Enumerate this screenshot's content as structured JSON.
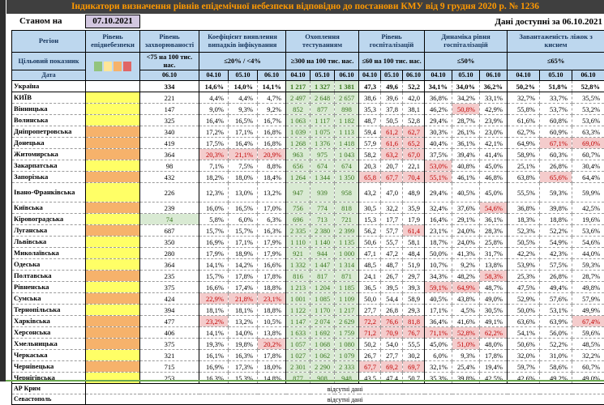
{
  "title": "Індикатори визначення рівнів епідемічної небезпеки відповідно до постанови КМУ від 9 грудня 2020 р. № 1236",
  "as_of": {
    "label": "Станом на",
    "date": "07.10.2021"
  },
  "data_available": "Дані доступні за 06.10.2021",
  "colors": {
    "title_text": "#FF9900",
    "title_bar_bg": "#3F3F3F",
    "header_bg": "#BDD7EE",
    "header_text": "#17365D",
    "as_of_bg": "#D2C7E0",
    "risk_yellow": "#FFFF66",
    "risk_orange": "#F6B26B",
    "cell_red_bg": "#F4CCCC",
    "cell_red_text": "#C00000",
    "cell_green_bg": "#D9EAD3",
    "cell_green_text": "#38761D",
    "legend": [
      "#93C47D",
      "#FFE599",
      "#F6B26B",
      "#E06666"
    ]
  },
  "header": {
    "region": "Регіон",
    "risk_level": "Рівень епіднебезпеки",
    "target_label": "Цільовий показник",
    "date_label": "Дата",
    "groups": [
      {
        "label": "Рівень захворюваності",
        "target": "<75 на 100 тис. нас.",
        "dates": [
          "06.10"
        ]
      },
      {
        "label": "Коефіцієнт виявлення випадків інфікування",
        "target": "≤20% / <4%",
        "dates": [
          "04.10",
          "05.10",
          "06.10"
        ]
      },
      {
        "label": "Охоплення тестуванням",
        "target": "≥300 на 100 тис. нас.",
        "dates": [
          "04.10",
          "05.10",
          "06.10"
        ]
      },
      {
        "label": "Рівень госпіталізацій",
        "target": "≤60 на 100 тис. нас.",
        "dates": [
          "04.10",
          "05.10",
          "06.10"
        ]
      },
      {
        "label": "Динаміка рівня госпіталізацій",
        "target": "≤50%",
        "dates": [
          "04.10",
          "05.10",
          "06.10"
        ]
      },
      {
        "label": "Завантаженість ліжок з киснем",
        "target": "≤65%",
        "dates": [
          "04.10",
          "05.10",
          "06.10"
        ]
      }
    ]
  },
  "cell_marker_legend": "cell values may be prefixed r: (red highlight) or g: (green highlight)",
  "rows": [
    {
      "region": "Україна",
      "risk": "none",
      "bold": true,
      "cells": [
        "334",
        "14,6%",
        "14,0%",
        "14,1%",
        "g:1 217",
        "g:1 327",
        "g:1 381",
        "47,3",
        "49,6",
        "52,2",
        "34,1%",
        "34,0%",
        "36,2%",
        "50,2%",
        "51,8%",
        "52,8%"
      ]
    },
    {
      "region": "КИЇВ",
      "risk": "yellow",
      "cells": [
        "221",
        "4,4%",
        "4,4%",
        "4,7%",
        "g:2 497",
        "g:2 648",
        "g:2 657",
        "38,6",
        "39,6",
        "42,0",
        "36,8%",
        "34,2%",
        "33,1%",
        "32,7%",
        "33,7%",
        "35,5%"
      ]
    },
    {
      "region": "Вінницька",
      "risk": "yellow",
      "cells": [
        "147",
        "9,0%",
        "9,3%",
        "9,2%",
        "g:852",
        "g:877",
        "g:898",
        "35,3",
        "37,8",
        "38,1",
        "46,2%",
        "r:50,8%",
        "42,9%",
        "55,8%",
        "53,7%",
        "53,2%"
      ]
    },
    {
      "region": "Волинська",
      "risk": "yellow",
      "cells": [
        "325",
        "16,4%",
        "16,5%",
        "16,7%",
        "g:1 063",
        "g:1 117",
        "g:1 182",
        "48,7",
        "50,5",
        "52,8",
        "29,4%",
        "28,7%",
        "23,9%",
        "61,6%",
        "60,8%",
        "53,6%"
      ]
    },
    {
      "region": "Дніпропетровська",
      "risk": "orange",
      "cells": [
        "340",
        "17,2%",
        "17,1%",
        "16,8%",
        "g:1 039",
        "g:1 075",
        "g:1 113",
        "59,4",
        "r:61,2",
        "r:62,7",
        "30,3%",
        "26,1%",
        "23,0%",
        "62,7%",
        "60,9%",
        "63,3%"
      ]
    },
    {
      "region": "Донецька",
      "risk": "orange",
      "cells": [
        "419",
        "17,5%",
        "16,4%",
        "16,8%",
        "g:1 268",
        "g:1 376",
        "g:1 418",
        "57,9",
        "r:61,6",
        "r:65,2",
        "40,4%",
        "36,1%",
        "42,1%",
        "64,9%",
        "r:67,1%",
        "r:69,0%"
      ]
    },
    {
      "region": "Житомирська",
      "risk": "orange",
      "cells": [
        "364",
        "r:20,3%",
        "r:21,1%",
        "r:20,9%",
        "g:963",
        "g:975",
        "g:1 043",
        "58,2",
        "r:63,2",
        "r:67,0",
        "37,5%",
        "39,4%",
        "41,4%",
        "58,9%",
        "60,3%",
        "60,7%"
      ]
    },
    {
      "region": "Закарпатська",
      "risk": "yellow",
      "cells": [
        "98",
        "7,1%",
        "7,5%",
        "8,8%",
        "g:656",
        "g:674",
        "g:674",
        "20,3",
        "20,7",
        "22,1",
        "r:53,0%",
        "40,8%",
        "45,0%",
        "25,1%",
        "26,8%",
        "30,4%"
      ]
    },
    {
      "region": "Запорізька",
      "risk": "orange",
      "cells": [
        "432",
        "18,2%",
        "18,0%",
        "18,4%",
        "g:1 264",
        "g:1 344",
        "g:1 350",
        "r:65,8",
        "r:67,7",
        "r:70,4",
        "r:55,1%",
        "46,1%",
        "46,8%",
        "63,8%",
        "r:65,6%",
        "64,4%"
      ]
    },
    {
      "region": "Івано-Франківська",
      "risk": "yellow",
      "tall": true,
      "cells": [
        "226",
        "12,3%",
        "13,0%",
        "13,2%",
        "g:947",
        "g:939",
        "g:958",
        "43,2",
        "47,0",
        "48,9",
        "29,4%",
        "40,5%",
        "45,0%",
        "55,5%",
        "59,3%",
        "59,9%"
      ]
    },
    {
      "region": "Київська",
      "risk": "orange",
      "cells": [
        "239",
        "16,0%",
        "16,5%",
        "17,0%",
        "g:756",
        "g:774",
        "g:818",
        "30,5",
        "32,2",
        "35,9",
        "32,4%",
        "37,6%",
        "r:54,6%",
        "36,8%",
        "39,8%",
        "42,5%"
      ]
    },
    {
      "region": "Кіровоградська",
      "risk": "yellow",
      "cells": [
        "g:74",
        "5,8%",
        "6,0%",
        "6,3%",
        "g:696",
        "g:713",
        "g:721",
        "15,3",
        "17,7",
        "17,9",
        "16,4%",
        "29,1%",
        "36,1%",
        "18,3%",
        "18,8%",
        "19,6%"
      ]
    },
    {
      "region": "Луганська",
      "risk": "orange",
      "cells": [
        "687",
        "15,7%",
        "15,7%",
        "16,3%",
        "g:2 335",
        "g:2 380",
        "g:2 399",
        "56,2",
        "57,7",
        "r:61,4",
        "23,1%",
        "24,0%",
        "28,3%",
        "52,3%",
        "52,2%",
        "53,6%"
      ]
    },
    {
      "region": "Львівська",
      "risk": "yellow",
      "cells": [
        "350",
        "16,9%",
        "17,1%",
        "17,9%",
        "g:1 110",
        "g:1 140",
        "g:1 135",
        "50,6",
        "55,7",
        "58,1",
        "18,7%",
        "24,0%",
        "25,8%",
        "50,5%",
        "54,9%",
        "54,6%"
      ]
    },
    {
      "region": "Миколаївська",
      "risk": "yellow",
      "cells": [
        "280",
        "17,9%",
        "18,9%",
        "17,9%",
        "g:921",
        "g:944",
        "g:1 000",
        "47,1",
        "47,2",
        "48,4",
        "50,0%",
        "41,3%",
        "31,7%",
        "42,2%",
        "42,3%",
        "44,0%"
      ]
    },
    {
      "region": "Одеська",
      "risk": "yellow",
      "cells": [
        "364",
        "14,1%",
        "14,2%",
        "16,6%",
        "g:1 332",
        "g:1 447",
        "g:1 314",
        "48,5",
        "48,7",
        "51,9",
        "10,7%",
        "9,2%",
        "13,8%",
        "53,9%",
        "57,5%",
        "59,3%"
      ]
    },
    {
      "region": "Полтавська",
      "risk": "orange",
      "cells": [
        "235",
        "15,7%",
        "17,8%",
        "17,8%",
        "g:816",
        "g:817",
        "g:871",
        "24,1",
        "26,7",
        "29,7",
        "34,3%",
        "48,2%",
        "r:58,3%",
        "25,3%",
        "26,8%",
        "28,7%"
      ]
    },
    {
      "region": "Рівненська",
      "risk": "yellow",
      "cells": [
        "375",
        "16,6%",
        "17,4%",
        "18,8%",
        "g:1 213",
        "g:1 204",
        "g:1 185",
        "36,5",
        "39,5",
        "39,3",
        "r:59,1%",
        "r:64,9%",
        "48,7%",
        "47,5%",
        "49,4%",
        "49,8%"
      ]
    },
    {
      "region": "Сумська",
      "risk": "orange",
      "cells": [
        "424",
        "r:22,9%",
        "r:21,8%",
        "r:23,1%",
        "g:1 001",
        "g:1 085",
        "g:1 109",
        "50,0",
        "54,4",
        "58,9",
        "40,5%",
        "43,8%",
        "49,0%",
        "52,9%",
        "57,6%",
        "57,9%"
      ]
    },
    {
      "region": "Тернопільська",
      "risk": "yellow",
      "cells": [
        "394",
        "18,1%",
        "18,1%",
        "18,8%",
        "g:1 122",
        "g:1 170",
        "g:1 217",
        "27,7",
        "26,8",
        "29,3",
        "17,1%",
        "4,5%",
        "30,5%",
        "50,0%",
        "53,1%",
        "49,9%"
      ]
    },
    {
      "region": "Харківська",
      "risk": "orange",
      "cells": [
        "477",
        "r:23,2%",
        "13,2%",
        "10,5%",
        "g:1 147",
        "g:2 074",
        "g:2 629",
        "r:72,2",
        "r:76,6",
        "r:81,8",
        "36,4%",
        "41,6%",
        "49,1%",
        "63,6%",
        "63,9%",
        "r:67,4%"
      ]
    },
    {
      "region": "Херсонська",
      "risk": "orange",
      "cells": [
        "406",
        "14,1%",
        "14,0%",
        "13,8%",
        "g:1 633",
        "g:1 692",
        "g:1 759",
        "r:71,2",
        "r:70,9",
        "r:76,7",
        "r:71,1%",
        "r:52,8%",
        "r:62,2%",
        "54,1%",
        "56,0%",
        "59,6%"
      ]
    },
    {
      "region": "Хмельницька",
      "risk": "orange",
      "cells": [
        "375",
        "19,3%",
        "19,8%",
        "r:20,2%",
        "g:1 057",
        "g:1 068",
        "g:1 080",
        "50,2",
        "54,0",
        "55,5",
        "45,0%",
        "r:51,0%",
        "48,0%",
        "50,6%",
        "52,2%",
        "48,5%"
      ]
    },
    {
      "region": "Черкаська",
      "risk": "yellow",
      "cells": [
        "321",
        "16,1%",
        "16,3%",
        "17,8%",
        "g:1 027",
        "g:1 062",
        "g:1 079",
        "26,7",
        "27,7",
        "30,2",
        "6,0%",
        "9,3%",
        "17,8%",
        "32,0%",
        "31,0%",
        "32,2%"
      ]
    },
    {
      "region": "Чернівецька",
      "risk": "orange",
      "cells": [
        "715",
        "16,9%",
        "17,3%",
        "18,0%",
        "g:2 301",
        "g:2 290",
        "g:2 333",
        "r:67,7",
        "r:69,2",
        "r:69,7",
        "32,1%",
        "25,4%",
        "19,4%",
        "59,7%",
        "58,6%",
        "60,7%"
      ]
    },
    {
      "region": "Чернігівська",
      "risk": "yellow",
      "cells": [
        "253",
        "16,3%",
        "15,3%",
        "14,8%",
        "g:877",
        "g:908",
        "g:948",
        "43,5",
        "47,4",
        "50,7",
        "35,3%",
        "39,8%",
        "42,5%",
        "42,6%",
        "49,2%",
        "49,0%"
      ]
    }
  ],
  "no_data_rows": [
    {
      "region": "АР Крим",
      "text": "відсутні дані"
    },
    {
      "region": "Севастополь",
      "text": "відсутні дані"
    }
  ]
}
